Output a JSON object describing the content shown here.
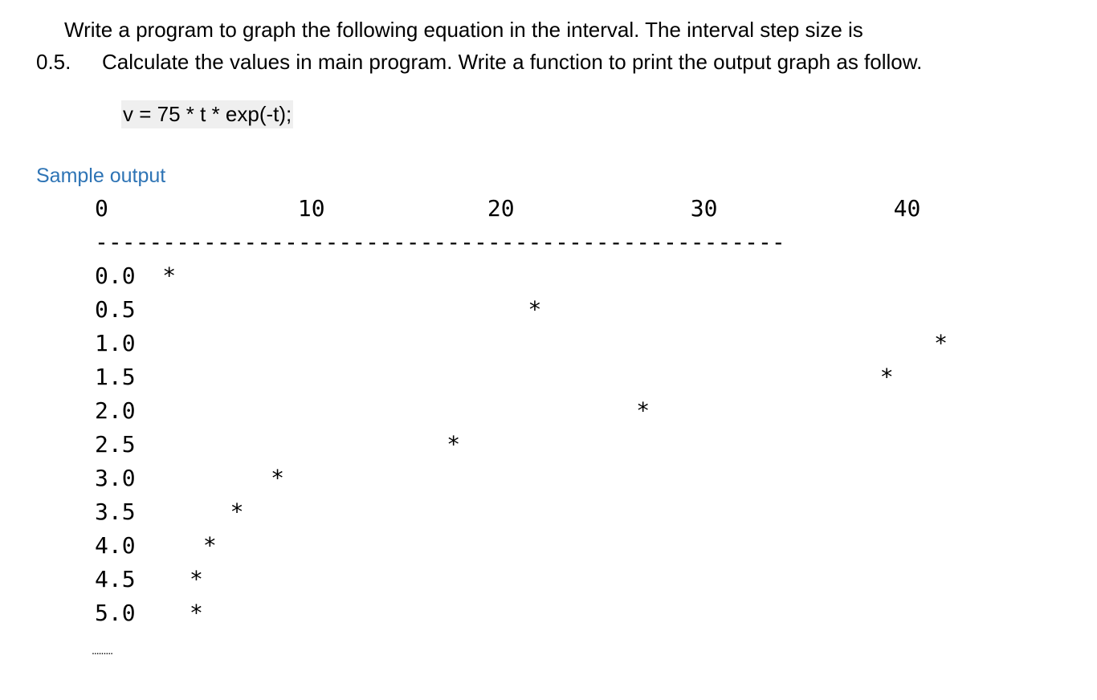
{
  "problem": {
    "line1": "Write a program to graph the following equation in the interval. The interval step size is",
    "line2_number": "0.5.",
    "line2_text": "Calculate the values in main program. Write a function to print the output graph as follow.",
    "equation": "v = 75 * t * exp(-t);"
  },
  "sample": {
    "heading": "Sample output",
    "lines": [
      "0              10            20             30             40",
      "---------------------------------------------------",
      "0.0  *",
      "0.5                             *",
      "1.0                                                           *",
      "1.5                                                       *",
      "2.0                                     *",
      "2.5                       *",
      "3.0          *",
      "3.5       *",
      "4.0     *",
      "4.5    *",
      "5.0    *"
    ],
    "ellipsis": "........."
  }
}
